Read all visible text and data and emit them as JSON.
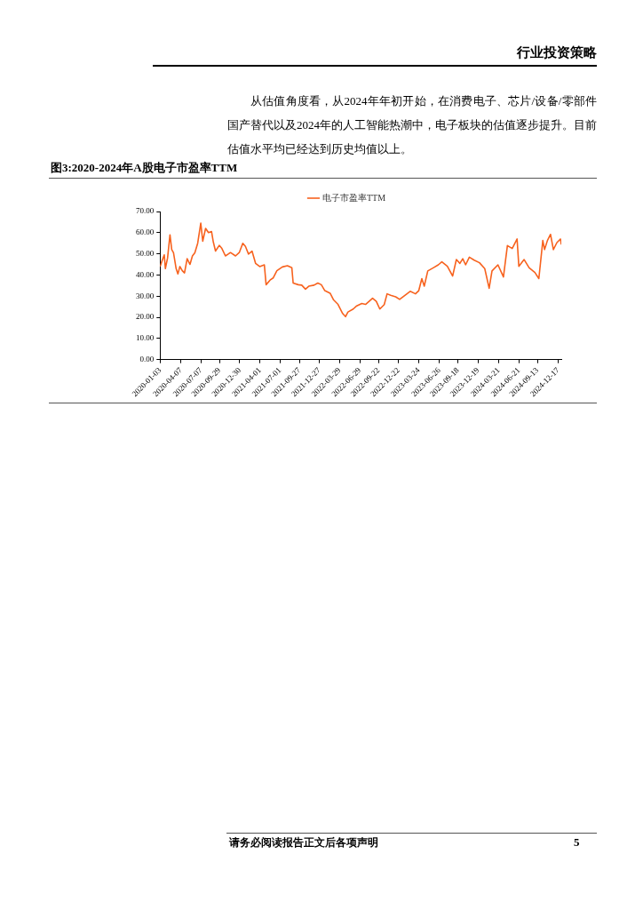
{
  "chart_data": {
    "type": "line",
    "title": "图3:2020-2024年A股电子市盈率TTM",
    "annotations": [
      "行业投资策略",
      "从估值角度看，从2024年年初开始，在消费电子、芯片/设备/零部件国产替代以及2024年的人工智能热潮中，电子板块的估值逐步提升。目前估值水平均已经达到历史均值以上。",
      "请务必阅读报告正文后各项声明",
      "5"
    ],
    "x": [
      "2020-01-03",
      "2020-01-13",
      "2020-01-22",
      "2020-01-27",
      "2020-02-06",
      "2020-02-17",
      "2020-02-25",
      "2020-03-04",
      "2020-03-16",
      "2020-03-24",
      "2020-04-02",
      "2020-04-13",
      "2020-04-23",
      "2020-05-05",
      "2020-05-18",
      "2020-05-29",
      "2020-06-09",
      "2020-06-22",
      "2020-07-06",
      "2020-07-15",
      "2020-07-28",
      "2020-08-10",
      "2020-08-24",
      "2020-09-01",
      "2020-09-11",
      "2020-09-28",
      "2020-10-09",
      "2020-10-26",
      "2020-11-18",
      "2020-12-11",
      "2020-12-28",
      "2021-01-13",
      "2021-01-25",
      "2021-02-08",
      "2021-02-24",
      "2021-03-12",
      "2021-03-31",
      "2021-04-21",
      "2021-04-29",
      "2021-05-17",
      "2021-05-31",
      "2021-06-17",
      "2021-07-12",
      "2021-08-04",
      "2021-08-24",
      "2021-08-30",
      "2021-09-22",
      "2021-10-08",
      "2021-10-25",
      "2021-11-09",
      "2021-12-03",
      "2021-12-20",
      "2022-01-05",
      "2022-01-21",
      "2022-02-14",
      "2022-03-02",
      "2022-03-22",
      "2022-04-12",
      "2022-04-25",
      "2022-05-06",
      "2022-05-30",
      "2022-06-15",
      "2022-07-08",
      "2022-07-25",
      "2022-08-10",
      "2022-08-26",
      "2022-09-12",
      "2022-09-28",
      "2022-10-18",
      "2022-10-31",
      "2022-11-16",
      "2022-12-09",
      "2022-12-27",
      "2023-01-20",
      "2023-02-13",
      "2023-03-09",
      "2023-03-24",
      "2023-04-07",
      "2023-04-18",
      "2023-05-04",
      "2023-05-29",
      "2023-06-21",
      "2023-07-07",
      "2023-08-01",
      "2023-08-25",
      "2023-09-11",
      "2023-09-27",
      "2023-10-10",
      "2023-10-23",
      "2023-11-09",
      "2023-12-01",
      "2023-12-25",
      "2024-01-18",
      "2024-02-07",
      "2024-02-20",
      "2024-03-18",
      "2024-04-12",
      "2024-04-30",
      "2024-05-22",
      "2024-06-13",
      "2024-06-21",
      "2024-07-15",
      "2024-08-07",
      "2024-09-02",
      "2024-09-20",
      "2024-10-08",
      "2024-10-16",
      "2024-10-29",
      "2024-11-12",
      "2024-11-25",
      "2024-12-11",
      "2024-12-27",
      "2024-12-31"
    ],
    "series": [
      {
        "name": "电子市盈率TTM",
        "color": "#f7621e",
        "values": [
          44,
          47,
          49.5,
          43,
          48,
          59,
          52,
          50.5,
          43,
          40.5,
          44,
          42,
          41,
          47.7,
          45,
          49,
          50.5,
          55,
          64.5,
          56,
          62,
          60,
          60.5,
          55.6,
          51.3,
          54,
          52.7,
          49,
          50.6,
          49,
          50.6,
          55,
          53.5,
          49.9,
          51.3,
          45.5,
          44,
          44.8,
          35.4,
          37.6,
          38.6,
          42,
          43.8,
          44.4,
          43.4,
          36.2,
          35.4,
          35.2,
          33.3,
          34.7,
          35.2,
          36.2,
          35.4,
          32.6,
          31.4,
          28.2,
          26.1,
          21.8,
          20.3,
          22.5,
          23.9,
          25.4,
          26.5,
          26.1,
          27.5,
          29,
          27.5,
          23.9,
          26,
          31.1,
          30.4,
          29.7,
          28.5,
          30.4,
          32.3,
          31.1,
          32.6,
          38.3,
          34.7,
          41.9,
          43.4,
          44.8,
          46.2,
          44.1,
          39.5,
          47.3,
          45.5,
          47.7,
          44.8,
          48.4,
          47,
          45.8,
          43,
          33.7,
          41.9,
          44.8,
          39.1,
          53.9,
          52.5,
          57,
          44.1,
          47.3,
          43.4,
          41.2,
          38.3,
          56.3,
          52,
          56.3,
          59.2,
          52,
          55.3,
          57,
          54.4
        ]
      }
    ],
    "xlim": [
      "2020-01-03",
      "2024-12-31"
    ],
    "xticks": [
      "2020-01-03",
      "2020-04-07",
      "2020-07-07",
      "2020-09-29",
      "2020-12-30",
      "2021-04-01",
      "2021-07-01",
      "2021-09-27",
      "2021-12-27",
      "2022-03-29",
      "2022-06-29",
      "2022-09-22",
      "2022-12-22",
      "2023-03-24",
      "2023-06-26",
      "2023-09-18",
      "2023-12-19",
      "2024-03-21",
      "2024-06-21",
      "2024-09-13",
      "2024-12-17"
    ],
    "ylim": [
      0,
      70
    ],
    "yticks": [
      {
        "value": 0,
        "label": "0.00"
      },
      {
        "value": 10,
        "label": "10.00"
      },
      {
        "value": 20,
        "label": "20.00"
      },
      {
        "value": 30,
        "label": "30.00"
      },
      {
        "value": 40,
        "label": "40.00"
      },
      {
        "value": 50,
        "label": "50.00"
      },
      {
        "value": 60,
        "label": "60.00"
      },
      {
        "value": 70,
        "label": "70.00"
      }
    ],
    "grid": false,
    "legend": "top",
    "marker": "none",
    "line_style": "solid"
  }
}
